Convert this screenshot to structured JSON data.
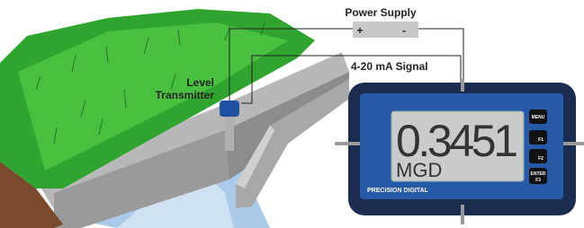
{
  "labels": {
    "power_supply": "Power Supply",
    "plus": "+",
    "minus": "-",
    "signal": "4-20 mA Signal",
    "transmitter": [
      "Level",
      "Transmitter"
    ]
  },
  "meter": {
    "reading": "0.3451",
    "unit": "MGD",
    "buttons": [
      "MENU",
      "F1",
      "F2",
      [
        "ENTER",
        "F3"
      ]
    ],
    "brand": "PRECISION DIGITAL"
  }
}
